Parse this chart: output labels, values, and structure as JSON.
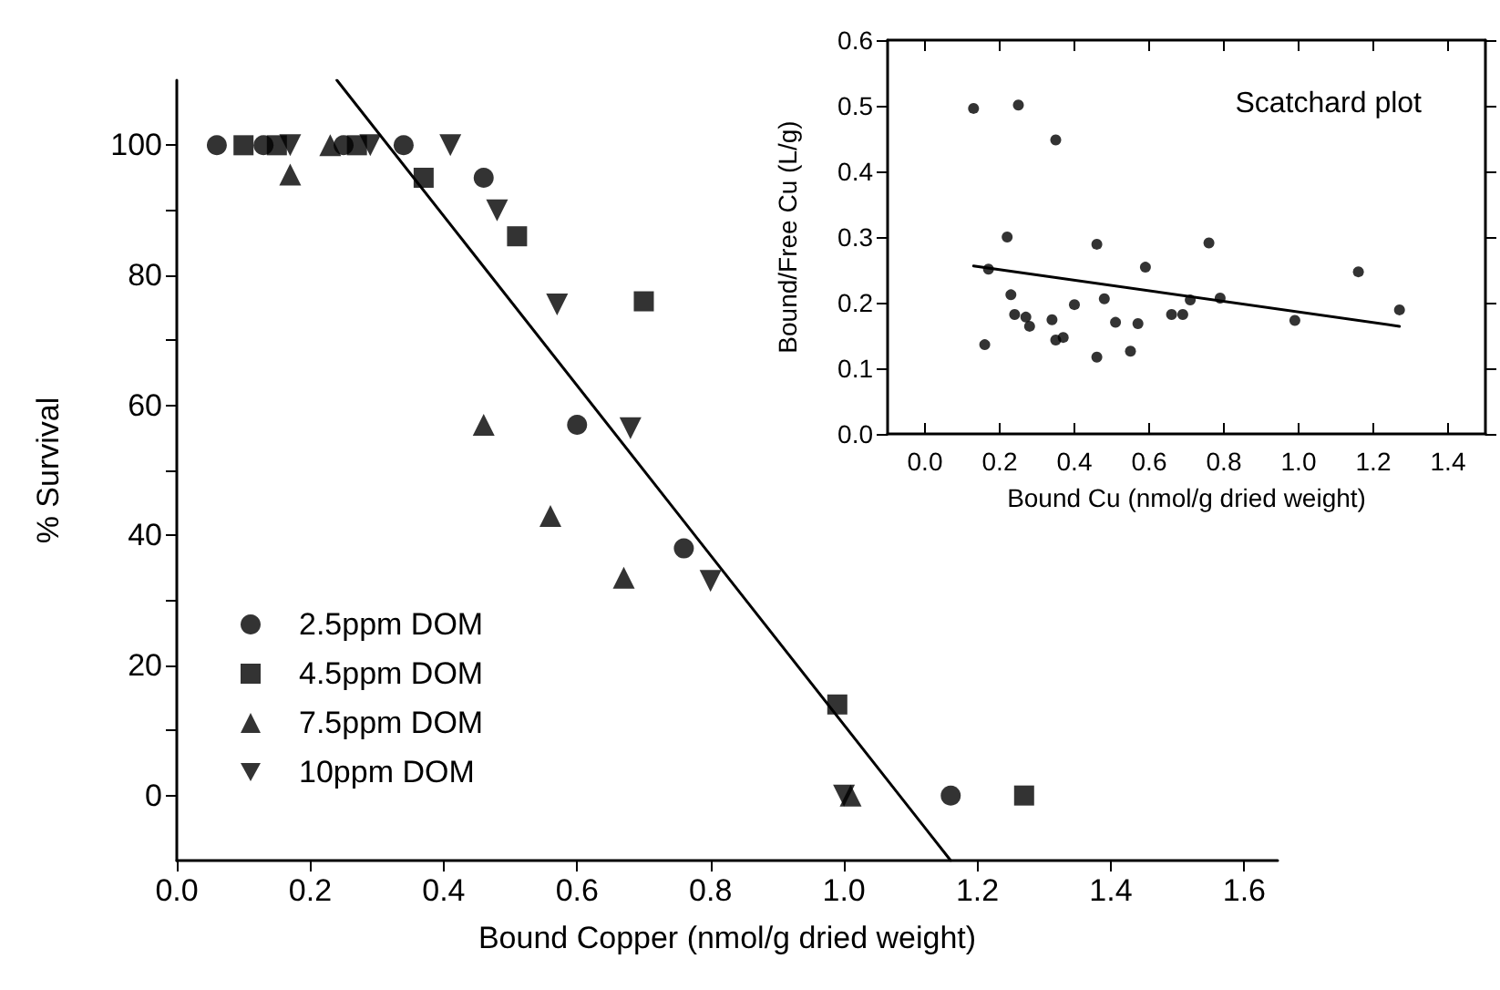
{
  "chart_data": [
    {
      "type": "scatter",
      "xlabel": "Bound Copper (nmol/g dried weight)",
      "ylabel": "% Survival",
      "xlim": [
        0,
        1.65
      ],
      "ylim": [
        -10,
        110
      ],
      "xticks": [
        {
          "value": 0,
          "label": "0.0"
        },
        {
          "value": 0.2,
          "label": "0.2"
        },
        {
          "value": 0.4,
          "label": "0.4"
        },
        {
          "value": 0.6,
          "label": "0.6"
        },
        {
          "value": 0.8,
          "label": "0.8"
        },
        {
          "value": 1,
          "label": "1.0"
        },
        {
          "value": 1.2,
          "label": "1.2"
        },
        {
          "value": 1.4,
          "label": "1.4"
        },
        {
          "value": 1.6,
          "label": "1.6"
        }
      ],
      "yticks": [
        0,
        {
          "value": 10,
          "label": null
        },
        20,
        {
          "value": 30,
          "label": null
        },
        40,
        {
          "value": 50,
          "label": null
        },
        60,
        {
          "value": 70,
          "label": null
        },
        80,
        {
          "value": 90,
          "label": null
        },
        100
      ],
      "legend": "bottom left",
      "series": [
        {
          "name": "2.5ppm DOM",
          "color": "#000000",
          "marker": "circle",
          "x": [
            0.06,
            0.13,
            0.25,
            0.34,
            0.46,
            0.6,
            0.76,
            1.16
          ],
          "values": [
            100,
            100,
            100,
            100,
            95,
            57,
            38,
            0
          ]
        },
        {
          "name": "4.5ppm DOM",
          "color": "#000000",
          "marker": "square",
          "x": [
            0.1,
            0.15,
            0.27,
            0.37,
            0.51,
            0.7,
            0.99,
            1.27
          ],
          "values": [
            100,
            100,
            100,
            95,
            86,
            76,
            14,
            0
          ]
        },
        {
          "name": "7.5ppm DOM",
          "color": "#000000",
          "marker": "triangle",
          "x": [
            0.17,
            0.23,
            0.46,
            0.56,
            0.67,
            1.01
          ],
          "values": [
            95.5,
            100,
            57,
            43,
            33.5,
            0
          ]
        },
        {
          "name": "10ppm DOM",
          "color": "#000000",
          "marker": "triangle-down",
          "x": [
            0.17,
            0.29,
            0.41,
            0.48,
            0.57,
            0.68,
            0.8,
            1.0
          ],
          "values": [
            100,
            100,
            100,
            90,
            75.5,
            56.5,
            33,
            0
          ]
        },
        {
          "type": "line",
          "color": "#000000",
          "marker": "none",
          "x": [
            0.24,
            1.16
          ],
          "values": [
            110,
            -10
          ]
        }
      ]
    },
    {
      "type": "scatter",
      "title": "Scatchard plot",
      "xlabel": "Bound Cu (nmol/g dried weight)",
      "ylabel": "Bound/Free Cu (L/g)",
      "xlim": [
        -0.1,
        1.5
      ],
      "ylim": [
        0,
        0.6
      ],
      "xticks": [
        {
          "value": 0,
          "label": "0.0"
        },
        {
          "value": 0.2,
          "label": "0.2"
        },
        {
          "value": 0.4,
          "label": "0.4"
        },
        {
          "value": 0.6,
          "label": "0.6"
        },
        {
          "value": 0.8,
          "label": "0.8"
        },
        {
          "value": 1,
          "label": "1.0"
        },
        {
          "value": 1.2,
          "label": "1.2"
        },
        {
          "value": 1.4,
          "label": "1.4"
        }
      ],
      "yticks": [
        {
          "value": 0,
          "label": "0.0"
        },
        {
          "value": 0.1,
          "label": "0.1"
        },
        {
          "value": 0.2,
          "label": "0.2"
        },
        {
          "value": 0.3,
          "label": "0.3"
        },
        {
          "value": 0.4,
          "label": "0.4"
        },
        {
          "value": 0.5,
          "label": "0.5"
        },
        {
          "value": 0.6,
          "label": "0.6"
        }
      ],
      "series": [
        {
          "color": "#000000",
          "marker": "circle",
          "x": [
            0.13,
            0.25,
            0.35,
            0.22,
            0.17,
            0.23,
            0.24,
            0.27,
            0.28,
            0.16,
            0.34,
            0.35,
            0.37,
            0.4,
            0.46,
            0.48,
            0.46,
            0.51,
            0.55,
            0.57,
            0.59,
            0.66,
            0.69,
            0.71,
            0.76,
            0.79,
            0.99,
            1.16,
            1.27
          ],
          "values": [
            0.496,
            0.501,
            0.448,
            0.3,
            0.251,
            0.212,
            0.182,
            0.178,
            0.164,
            0.136,
            0.174,
            0.143,
            0.147,
            0.197,
            0.289,
            0.206,
            0.117,
            0.17,
            0.126,
            0.168,
            0.254,
            0.182,
            0.182,
            0.204,
            0.291,
            0.207,
            0.173,
            0.247,
            0.189
          ]
        },
        {
          "type": "line",
          "color": "#000000",
          "marker": "none",
          "x": [
            0.13,
            1.27
          ],
          "values": [
            0.256,
            0.164
          ]
        }
      ]
    }
  ]
}
